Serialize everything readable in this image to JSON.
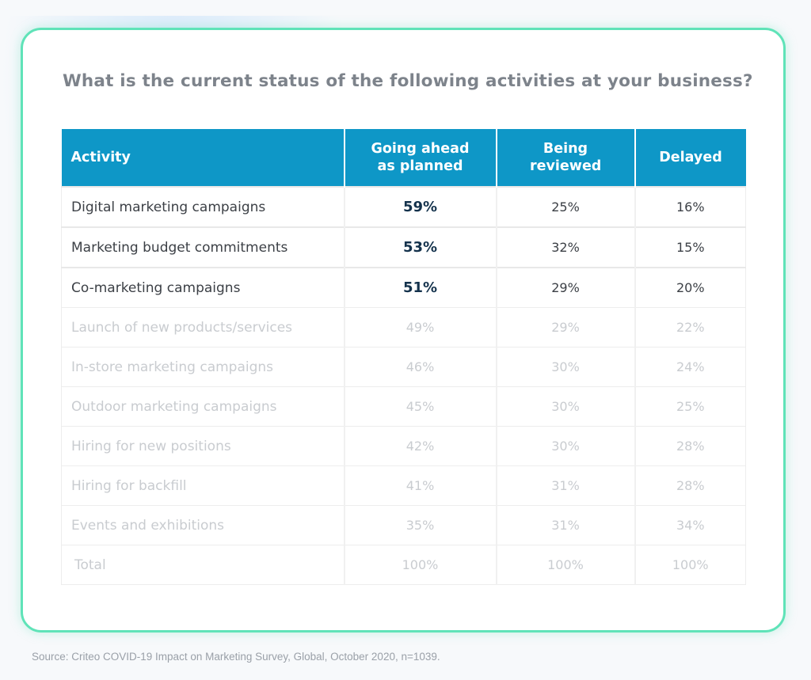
{
  "title": "What is the current status of the following activities at your business?",
  "source": "Source: Criteo COVID-19 Impact on Marketing Survey, Global, October 2020, n=1039.",
  "colors": {
    "header_bg": "#0e97c7",
    "card_border": "#5fe3b8",
    "title": "#7d838b",
    "highlight_value": "#14324c"
  },
  "chart_data": {
    "type": "table",
    "columns": [
      "Activity",
      "Going ahead as planned",
      "Being reviewed",
      "Delayed"
    ],
    "rows": [
      {
        "activity": "Digital marketing campaigns",
        "going_ahead": "59%",
        "being_reviewed": "25%",
        "delayed": "16%",
        "highlighted": true
      },
      {
        "activity": "Marketing budget commitments",
        "going_ahead": "53%",
        "being_reviewed": "32%",
        "delayed": "15%",
        "highlighted": true
      },
      {
        "activity": "Co-marketing campaigns",
        "going_ahead": "51%",
        "being_reviewed": "29%",
        "delayed": "20%",
        "highlighted": true
      },
      {
        "activity": "Launch of new products/services",
        "going_ahead": "49%",
        "being_reviewed": "29%",
        "delayed": "22%",
        "highlighted": false
      },
      {
        "activity": "In-store marketing campaigns",
        "going_ahead": "46%",
        "being_reviewed": "30%",
        "delayed": "24%",
        "highlighted": false
      },
      {
        "activity": "Outdoor marketing campaigns",
        "going_ahead": "45%",
        "being_reviewed": "30%",
        "delayed": "25%",
        "highlighted": false
      },
      {
        "activity": "Hiring for new positions",
        "going_ahead": "42%",
        "being_reviewed": "30%",
        "delayed": "28%",
        "highlighted": false
      },
      {
        "activity": "Hiring for backfill",
        "going_ahead": "41%",
        "being_reviewed": "31%",
        "delayed": "28%",
        "highlighted": false
      },
      {
        "activity": "Events and exhibitions",
        "going_ahead": "35%",
        "being_reviewed": "31%",
        "delayed": "34%",
        "highlighted": false
      },
      {
        "activity": "Total",
        "going_ahead": "100%",
        "being_reviewed": "100%",
        "delayed": "100%",
        "highlighted": false
      }
    ]
  }
}
